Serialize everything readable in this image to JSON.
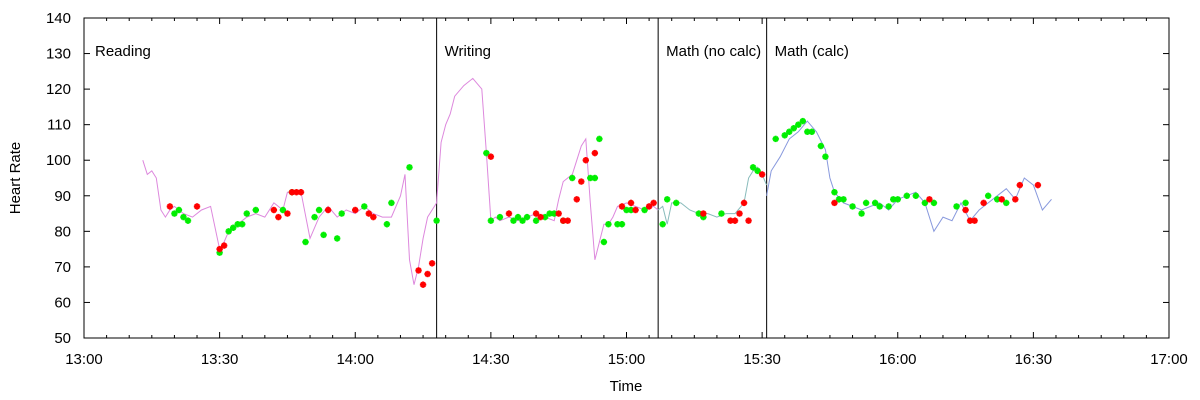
{
  "chart_data": {
    "type": "line",
    "title": "",
    "xlabel": "Time",
    "ylabel": "Heart Rate",
    "xlim": [
      "13:00",
      "17:00"
    ],
    "ylim": [
      50,
      140
    ],
    "x_ticks": [
      "13:00",
      "13:30",
      "14:00",
      "14:30",
      "15:00",
      "15:30",
      "16:00",
      "16:30",
      "17:00"
    ],
    "y_ticks": [
      50,
      60,
      70,
      80,
      90,
      100,
      110,
      120,
      130,
      140
    ],
    "grid": false,
    "legend": "none",
    "sections": [
      {
        "label": "Reading",
        "start": "13:00",
        "end": "14:18"
      },
      {
        "label": "Writing",
        "start": "14:18",
        "end": "15:07"
      },
      {
        "label": "Math (no calc)",
        "start": "15:07",
        "end": "15:31"
      },
      {
        "label": "Math (calc)",
        "start": "15:31",
        "end": "16:34"
      }
    ],
    "series": [
      {
        "color": "#dd88dd",
        "x": [
          "13:13",
          "13:14",
          "13:15",
          "13:16",
          "13:17",
          "13:18",
          "13:19",
          "13:20",
          "13:22",
          "13:24",
          "13:26",
          "13:28",
          "13:30",
          "13:31",
          "13:32",
          "13:34",
          "13:36",
          "13:38",
          "13:40",
          "13:42",
          "13:44",
          "13:45",
          "13:46",
          "13:48",
          "13:50",
          "13:52",
          "13:54",
          "13:56",
          "13:58",
          "14:00",
          "14:02",
          "14:04",
          "14:06",
          "14:08",
          "14:10",
          "14:11",
          "14:12",
          "14:13",
          "14:14",
          "14:15",
          "14:16",
          "14:17",
          "14:18",
          "14:19",
          "14:20",
          "14:21",
          "14:22",
          "14:24",
          "14:26",
          "14:28",
          "14:29",
          "14:30",
          "14:31",
          "14:32",
          "14:34",
          "14:36",
          "14:38",
          "14:40",
          "14:42",
          "14:44",
          "14:45",
          "14:46",
          "14:47",
          "14:48",
          "14:49",
          "14:50",
          "14:51",
          "14:52",
          "14:53",
          "14:54",
          "14:55",
          "14:56",
          "14:57",
          "14:58",
          "15:00",
          "15:02",
          "15:04",
          "15:06",
          "15:07"
        ],
        "y": [
          100,
          96,
          97,
          95,
          86,
          84,
          86,
          87,
          85,
          84,
          86,
          87,
          75,
          77,
          80,
          82,
          84,
          85,
          84,
          88,
          86,
          91,
          91,
          91,
          78,
          84,
          87,
          84,
          86,
          85,
          87,
          85,
          84,
          84,
          90,
          96,
          72,
          65,
          70,
          78,
          84,
          86,
          88,
          105,
          110,
          113,
          118,
          121,
          123,
          120,
          102,
          83,
          84,
          83,
          84,
          83,
          84,
          85,
          84,
          83,
          89,
          94,
          95,
          96,
          100,
          104,
          106,
          88,
          72,
          77,
          82,
          82,
          84,
          87,
          88,
          87,
          86,
          87,
          86
        ]
      },
      {
        "color": "#88bbbb",
        "x": [
          "15:07",
          "15:08",
          "15:09",
          "15:10",
          "15:12",
          "15:14",
          "15:16",
          "15:18",
          "15:20",
          "15:22",
          "15:24",
          "15:26",
          "15:27",
          "15:28",
          "15:29",
          "15:30",
          "15:31"
        ],
        "y": [
          86,
          87,
          82,
          88,
          88,
          86,
          85,
          85,
          84,
          85,
          85,
          88,
          95,
          97,
          98,
          96,
          93
        ]
      },
      {
        "color": "#8899dd",
        "x": [
          "15:31",
          "15:32",
          "15:34",
          "15:36",
          "15:38",
          "15:40",
          "15:42",
          "15:44",
          "15:45",
          "15:46",
          "15:48",
          "15:50",
          "15:52",
          "15:54",
          "15:56",
          "15:58",
          "16:00",
          "16:02",
          "16:04",
          "16:06",
          "16:08",
          "16:10",
          "16:12",
          "16:14",
          "16:16",
          "16:18",
          "16:20",
          "16:22",
          "16:24",
          "16:26",
          "16:28",
          "16:30",
          "16:32",
          "16:34"
        ],
        "y": [
          90,
          97,
          101,
          106,
          108,
          111,
          108,
          103,
          95,
          91,
          88,
          87,
          86,
          87,
          88,
          86,
          89,
          90,
          91,
          88,
          80,
          84,
          83,
          88,
          83,
          86,
          88,
          90,
          92,
          89,
          95,
          93,
          86,
          89
        ]
      }
    ],
    "markers": {
      "red": {
        "color": "#ff0000",
        "x": [
          "13:19",
          "13:25",
          "13:30",
          "13:31",
          "13:42",
          "13:43",
          "13:45",
          "13:46",
          "13:47",
          "13:48",
          "13:54",
          "14:00",
          "14:03",
          "14:04",
          "14:14",
          "14:15",
          "14:16",
          "14:17",
          "14:30",
          "14:34",
          "14:40",
          "14:41",
          "14:45",
          "14:46",
          "14:47",
          "14:49",
          "14:50",
          "14:51",
          "14:53",
          "14:59",
          "15:01",
          "15:02",
          "15:05",
          "15:06",
          "15:17",
          "15:23",
          "15:24",
          "15:25",
          "15:26",
          "15:27",
          "15:30",
          "15:46",
          "16:07",
          "16:15",
          "16:16",
          "16:17",
          "16:19",
          "16:23",
          "16:26",
          "16:27",
          "16:31"
        ],
        "y": [
          87,
          87,
          75,
          76,
          86,
          84,
          85,
          91,
          91,
          91,
          86,
          86,
          85,
          84,
          69,
          65,
          68,
          71,
          101,
          85,
          85,
          84,
          85,
          83,
          83,
          89,
          94,
          100,
          102,
          87,
          88,
          86,
          87,
          88,
          85,
          83,
          83,
          85,
          88,
          83,
          96,
          88,
          89,
          86,
          83,
          83,
          88,
          89,
          89,
          93,
          93
        ]
      },
      "green": {
        "color": "#00ee00",
        "x": [
          "13:20",
          "13:21",
          "13:22",
          "13:23",
          "13:30",
          "13:32",
          "13:33",
          "13:34",
          "13:35",
          "13:36",
          "13:38",
          "13:44",
          "13:46",
          "13:49",
          "13:51",
          "13:52",
          "13:53",
          "13:56",
          "13:57",
          "14:02",
          "14:07",
          "14:08",
          "14:12",
          "14:18",
          "14:29",
          "14:30",
          "14:32",
          "14:35",
          "14:36",
          "14:37",
          "14:38",
          "14:40",
          "14:42",
          "14:43",
          "14:44",
          "14:46",
          "14:48",
          "14:52",
          "14:53",
          "14:54",
          "14:55",
          "14:56",
          "14:58",
          "14:59",
          "15:00",
          "15:01",
          "15:04",
          "15:08",
          "15:09",
          "15:11",
          "15:16",
          "15:17",
          "15:21",
          "15:28",
          "15:29",
          "15:33",
          "15:35",
          "15:36",
          "15:37",
          "15:38",
          "15:39",
          "15:40",
          "15:41",
          "15:43",
          "15:44",
          "15:46",
          "15:47",
          "15:48",
          "15:50",
          "15:52",
          "15:53",
          "15:55",
          "15:56",
          "15:58",
          "15:59",
          "16:00",
          "16:02",
          "16:04",
          "16:06",
          "16:08",
          "16:13",
          "16:15",
          "16:20",
          "16:22",
          "16:24"
        ],
        "y": [
          85,
          86,
          84,
          83,
          74,
          80,
          81,
          82,
          82,
          85,
          86,
          86,
          91,
          77,
          84,
          86,
          79,
          78,
          85,
          87,
          82,
          88,
          98,
          83,
          102,
          83,
          84,
          83,
          84,
          83,
          84,
          83,
          84,
          85,
          85,
          83,
          95,
          95,
          95,
          106,
          77,
          82,
          82,
          82,
          86,
          86,
          86,
          82,
          89,
          88,
          85,
          84,
          85,
          98,
          97,
          106,
          107,
          108,
          109,
          110,
          111,
          108,
          108,
          104,
          101,
          91,
          89,
          89,
          87,
          85,
          88,
          88,
          87,
          87,
          89,
          89,
          90,
          90,
          88,
          88,
          87,
          88,
          90,
          89,
          88
        ]
      }
    }
  }
}
